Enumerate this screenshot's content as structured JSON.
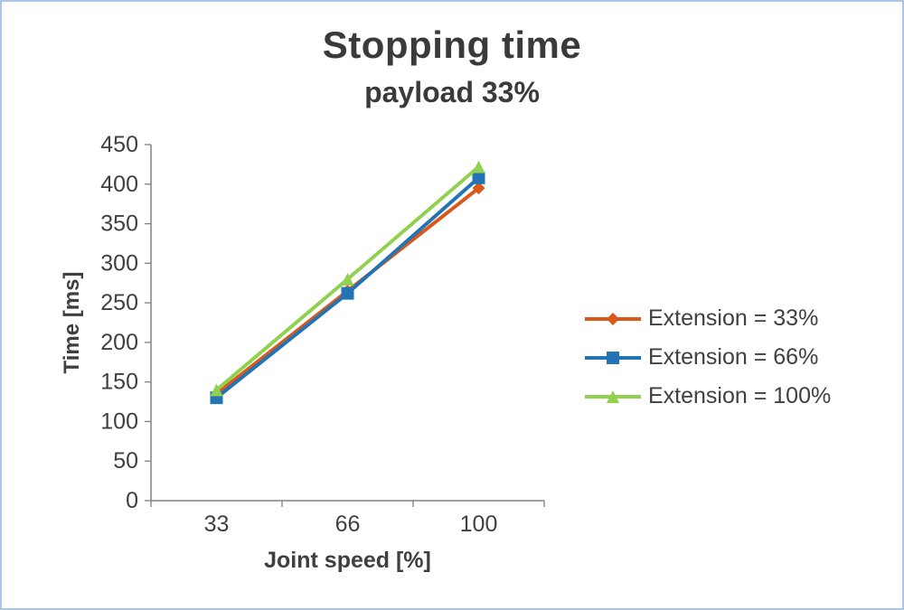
{
  "chart_data": {
    "type": "line",
    "title": "Stopping time",
    "subtitle": "payload 33%",
    "xlabel": "Joint speed [%]",
    "ylabel": "Time [ms]",
    "categories": [
      "33",
      "66",
      "100"
    ],
    "series": [
      {
        "name": "Extension = 33%",
        "values": [
          135,
          265,
          395
        ],
        "color": "#d9581a",
        "marker": "diamond"
      },
      {
        "name": "Extension = 66%",
        "values": [
          130,
          262,
          408
        ],
        "color": "#2274b5",
        "marker": "square"
      },
      {
        "name": "Extension = 100%",
        "values": [
          140,
          280,
          422
        ],
        "color": "#92d050",
        "marker": "triangle"
      }
    ],
    "ylim": [
      0,
      450
    ],
    "ytick_step": 50,
    "grid": false,
    "legend_position": "right"
  }
}
